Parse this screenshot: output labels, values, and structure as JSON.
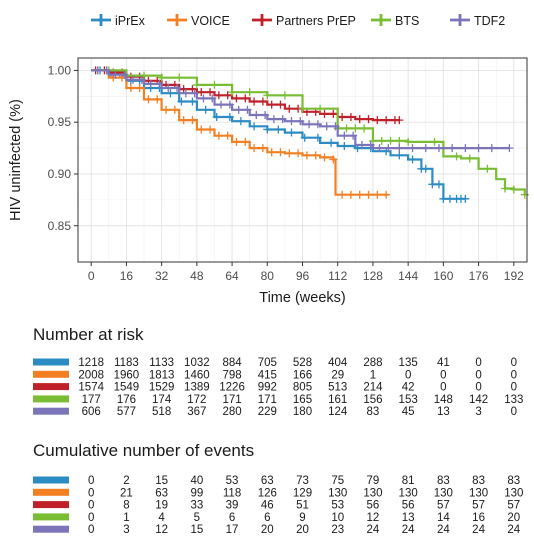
{
  "chart_data": {
    "type": "line",
    "subtype": "kaplan-meier",
    "xlabel": "Time (weeks)",
    "ylabel": "HIV uninfected (%)",
    "xlim": [
      -6,
      198
    ],
    "ylim": [
      0.815,
      1.012
    ],
    "xticks": [
      0,
      16,
      32,
      48,
      64,
      80,
      96,
      112,
      128,
      144,
      160,
      176,
      192
    ],
    "yticks": [
      0.85,
      0.9,
      0.95,
      1.0
    ],
    "ytick_labels": [
      "0.85",
      "0.90",
      "0.95",
      "1.00"
    ],
    "grid": true,
    "legend_position": "top",
    "series": [
      {
        "name": "iPrEx",
        "color": "#2b8cc4",
        "points": [
          [
            0,
            1.0
          ],
          [
            8,
            0.997
          ],
          [
            16,
            0.99
          ],
          [
            24,
            0.983
          ],
          [
            32,
            0.978
          ],
          [
            40,
            0.97
          ],
          [
            48,
            0.962
          ],
          [
            56,
            0.955
          ],
          [
            64,
            0.951
          ],
          [
            72,
            0.946
          ],
          [
            80,
            0.943
          ],
          [
            88,
            0.94
          ],
          [
            96,
            0.935
          ],
          [
            104,
            0.93
          ],
          [
            112,
            0.927
          ],
          [
            120,
            0.925
          ],
          [
            128,
            0.922
          ],
          [
            136,
            0.918
          ],
          [
            144,
            0.914
          ],
          [
            150,
            0.905
          ],
          [
            155,
            0.89
          ],
          [
            160,
            0.876
          ],
          [
            170,
            0.876
          ]
        ],
        "censor_x": [
          4,
          9,
          13,
          18,
          22,
          27,
          31,
          36,
          41,
          46,
          52,
          57,
          63,
          68,
          74,
          80,
          85,
          91,
          97,
          103,
          109,
          115,
          121,
          127,
          134,
          140,
          146,
          150,
          152,
          155,
          158,
          160,
          163,
          166,
          168,
          170
        ]
      },
      {
        "name": "VOICE",
        "color": "#f28022",
        "points": [
          [
            0,
            1.0
          ],
          [
            8,
            0.993
          ],
          [
            16,
            0.983
          ],
          [
            24,
            0.972
          ],
          [
            32,
            0.962
          ],
          [
            40,
            0.952
          ],
          [
            48,
            0.943
          ],
          [
            56,
            0.937
          ],
          [
            64,
            0.931
          ],
          [
            72,
            0.925
          ],
          [
            80,
            0.921
          ],
          [
            88,
            0.92
          ],
          [
            96,
            0.918
          ],
          [
            104,
            0.916
          ],
          [
            110,
            0.914
          ],
          [
            111,
            0.88
          ],
          [
            135,
            0.88
          ]
        ],
        "censor_x": [
          3,
          7,
          10,
          14,
          18,
          22,
          26,
          30,
          34,
          38,
          42,
          46,
          50,
          54,
          58,
          62,
          66,
          70,
          74,
          78,
          82,
          86,
          90,
          94,
          98,
          102,
          106,
          110,
          114,
          118,
          122,
          126,
          130,
          134
        ]
      },
      {
        "name": "Partners PrEP",
        "color": "#c0202a",
        "points": [
          [
            0,
            1.0
          ],
          [
            8,
            0.998
          ],
          [
            16,
            0.994
          ],
          [
            24,
            0.99
          ],
          [
            32,
            0.986
          ],
          [
            40,
            0.982
          ],
          [
            48,
            0.979
          ],
          [
            56,
            0.976
          ],
          [
            64,
            0.973
          ],
          [
            72,
            0.97
          ],
          [
            80,
            0.967
          ],
          [
            88,
            0.963
          ],
          [
            96,
            0.96
          ],
          [
            104,
            0.958
          ],
          [
            112,
            0.955
          ],
          [
            120,
            0.953
          ],
          [
            128,
            0.952
          ],
          [
            140,
            0.952
          ]
        ],
        "censor_x": [
          2,
          6,
          10,
          14,
          18,
          22,
          26,
          30,
          34,
          38,
          42,
          46,
          50,
          54,
          58,
          62,
          66,
          70,
          74,
          78,
          82,
          86,
          90,
          94,
          98,
          102,
          106,
          110,
          114,
          118,
          122,
          126,
          130,
          134,
          138,
          140
        ]
      },
      {
        "name": "BTS",
        "color": "#78bd32",
        "points": [
          [
            0,
            1.0
          ],
          [
            16,
            0.995
          ],
          [
            32,
            0.993
          ],
          [
            48,
            0.986
          ],
          [
            64,
            0.979
          ],
          [
            80,
            0.976
          ],
          [
            96,
            0.963
          ],
          [
            112,
            0.944
          ],
          [
            128,
            0.932
          ],
          [
            144,
            0.931
          ],
          [
            160,
            0.917
          ],
          [
            168,
            0.915
          ],
          [
            176,
            0.905
          ],
          [
            184,
            0.895
          ],
          [
            188,
            0.886
          ],
          [
            192,
            0.885
          ],
          [
            197,
            0.88
          ]
        ],
        "censor_x": [
          8,
          16,
          24,
          32,
          40,
          48,
          56,
          64,
          72,
          80,
          88,
          96,
          104,
          112,
          116,
          120,
          124,
          128,
          132,
          136,
          140,
          144,
          156,
          166,
          172,
          180,
          188,
          192,
          197
        ]
      },
      {
        "name": "TDF2",
        "color": "#7b74b8",
        "points": [
          [
            0,
            1.0
          ],
          [
            8,
            0.996
          ],
          [
            16,
            0.991
          ],
          [
            24,
            0.987
          ],
          [
            32,
            0.983
          ],
          [
            40,
            0.978
          ],
          [
            48,
            0.973
          ],
          [
            56,
            0.967
          ],
          [
            64,
            0.962
          ],
          [
            72,
            0.957
          ],
          [
            80,
            0.953
          ],
          [
            88,
            0.951
          ],
          [
            96,
            0.948
          ],
          [
            104,
            0.946
          ],
          [
            112,
            0.937
          ],
          [
            120,
            0.928
          ],
          [
            128,
            0.925
          ],
          [
            160,
            0.925
          ],
          [
            190,
            0.925
          ]
        ],
        "censor_x": [
          3,
          7,
          11,
          15,
          19,
          23,
          27,
          31,
          35,
          39,
          43,
          47,
          51,
          55,
          59,
          63,
          67,
          71,
          75,
          79,
          83,
          87,
          91,
          95,
          99,
          103,
          107,
          111,
          115,
          119,
          123,
          127,
          131,
          135,
          140,
          146,
          152,
          158,
          164,
          170,
          176,
          182,
          190
        ]
      }
    ]
  },
  "risk_table": {
    "title": "Number at risk",
    "rows": [
      [
        "1218",
        "1183",
        "1133",
        "1032",
        "884",
        "705",
        "528",
        "404",
        "288",
        "135",
        "41",
        "0",
        "0"
      ],
      [
        "2008",
        "1960",
        "1813",
        "1460",
        "798",
        "415",
        "166",
        "29",
        "1",
        "0",
        "0",
        "0",
        "0"
      ],
      [
        "1574",
        "1549",
        "1529",
        "1389",
        "1226",
        "992",
        "805",
        "513",
        "214",
        "42",
        "0",
        "0",
        "0"
      ],
      [
        "177",
        "176",
        "174",
        "172",
        "171",
        "171",
        "165",
        "161",
        "156",
        "153",
        "148",
        "142",
        "133"
      ],
      [
        "606",
        "577",
        "518",
        "367",
        "280",
        "229",
        "180",
        "124",
        "83",
        "45",
        "13",
        "3",
        "0"
      ]
    ]
  },
  "events_table": {
    "title": "Cumulative number of events",
    "rows": [
      [
        "0",
        "2",
        "15",
        "40",
        "53",
        "63",
        "73",
        "75",
        "79",
        "81",
        "83",
        "83",
        "83"
      ],
      [
        "0",
        "21",
        "63",
        "99",
        "118",
        "126",
        "129",
        "130",
        "130",
        "130",
        "130",
        "130",
        "130"
      ],
      [
        "0",
        "8",
        "19",
        "33",
        "39",
        "46",
        "51",
        "53",
        "56",
        "56",
        "57",
        "57",
        "57"
      ],
      [
        "0",
        "1",
        "4",
        "5",
        "6",
        "6",
        "9",
        "10",
        "12",
        "13",
        "14",
        "16",
        "20"
      ],
      [
        "0",
        "3",
        "12",
        "15",
        "17",
        "20",
        "20",
        "23",
        "24",
        "24",
        "24",
        "24",
        "24"
      ]
    ]
  }
}
